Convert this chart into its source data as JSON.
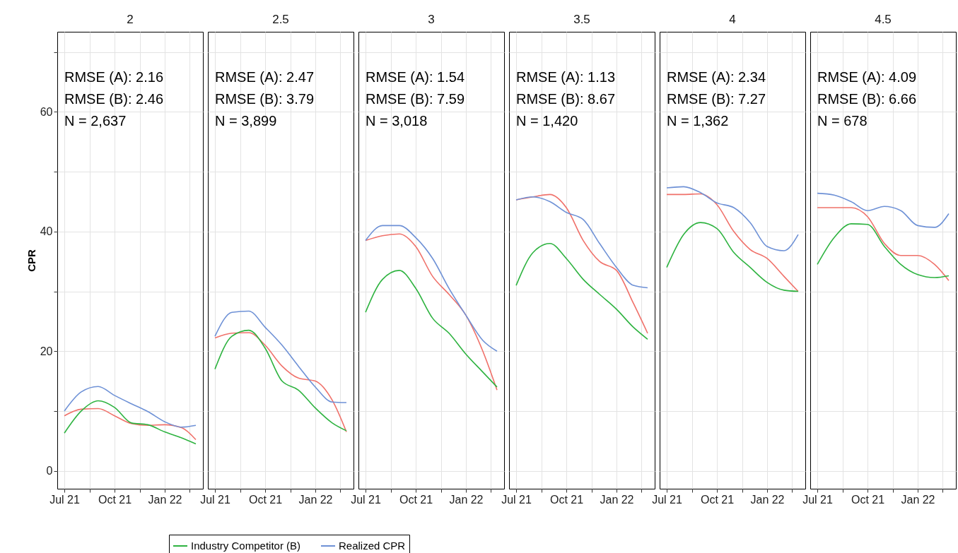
{
  "chart_data": [
    {
      "type": "line",
      "title": "2",
      "ylabel": "CPR",
      "annotations": [
        "RMSE (A): 2.16",
        "RMSE (B): 2.46",
        "N = 2,637"
      ],
      "x": [
        "2021-07-01",
        "2021-08-01",
        "2021-09-01",
        "2021-10-01",
        "2021-11-01",
        "2021-12-01",
        "2022-01-01",
        "2022-02-01",
        "2022-02-27"
      ],
      "xlim": [
        "2021-06-18",
        "2022-03-12"
      ],
      "xticks": [
        {
          "value": "2021-07-01",
          "label": "Jul 21"
        },
        {
          "value": "2021-08-16",
          "label": null
        },
        {
          "value": "2021-10-01",
          "label": "Oct 21"
        },
        {
          "value": "2021-11-16",
          "label": null
        },
        {
          "value": "2022-01-01",
          "label": "Jan 22"
        },
        {
          "value": "2022-02-15",
          "label": null
        }
      ],
      "ylim": [
        -3,
        73.4
      ],
      "yticks": [
        0,
        {
          "value": 10,
          "label": null
        },
        20,
        {
          "value": 30,
          "label": null
        },
        40,
        {
          "value": 50,
          "label": null
        },
        60,
        {
          "value": 70,
          "label": null
        }
      ],
      "grid": true,
      "legend": "bottom",
      "series": [
        {
          "color": "#f0716a",
          "values": [
            9.2,
            10.3,
            10.4,
            9.2,
            7.9,
            7.6,
            7.7,
            7.2,
            5.2
          ]
        },
        {
          "name": "Industry Competitor (B)",
          "color": "#2eb340",
          "values": [
            6.3,
            10,
            11.7,
            10.6,
            8,
            7.7,
            6.5,
            5.5,
            4.5
          ]
        },
        {
          "name": "Realized CPR",
          "color": "#6e91d6",
          "values": [
            10,
            13.2,
            14.1,
            12.6,
            11.2,
            9.9,
            8.2,
            7.3,
            7.6
          ]
        }
      ]
    },
    {
      "type": "line",
      "title": "2.5",
      "annotations": [
        "RMSE (A): 2.47",
        "RMSE (B): 3.79",
        "N = 3,899"
      ],
      "x": [
        "2021-07-01",
        "2021-08-01",
        "2021-09-01",
        "2021-10-01",
        "2021-11-01",
        "2021-12-01",
        "2022-01-01",
        "2022-02-01",
        "2022-02-27"
      ],
      "xlim": [
        "2021-06-18",
        "2022-03-12"
      ],
      "xticks": [
        {
          "value": "2021-07-01",
          "label": "Jul 21"
        },
        {
          "value": "2021-08-16",
          "label": null
        },
        {
          "value": "2021-10-01",
          "label": "Oct 21"
        },
        {
          "value": "2021-11-16",
          "label": null
        },
        {
          "value": "2022-01-01",
          "label": "Jan 22"
        },
        {
          "value": "2022-02-15",
          "label": null
        }
      ],
      "ylim": [
        -3,
        73.4
      ],
      "yticks": [
        0,
        {
          "value": 10,
          "label": null
        },
        20,
        {
          "value": 30,
          "label": null
        },
        40,
        {
          "value": 50,
          "label": null
        },
        60,
        {
          "value": 70,
          "label": null
        }
      ],
      "grid": true,
      "tick_labels": "x",
      "series": [
        {
          "color": "#f0716a",
          "values": [
            22.2,
            23,
            23.1,
            21,
            17.5,
            15.5,
            15,
            11.8,
            6.5
          ]
        },
        {
          "color": "#2eb340",
          "values": [
            17,
            22.5,
            23.5,
            20.5,
            15,
            13.5,
            10.5,
            8,
            6.7
          ]
        },
        {
          "color": "#6e91d6",
          "values": [
            22.5,
            26.5,
            26.7,
            24,
            21,
            17.5,
            14,
            11.5,
            11.4
          ]
        }
      ]
    },
    {
      "type": "line",
      "title": "3",
      "annotations": [
        "RMSE (A): 1.54",
        "RMSE (B): 7.59",
        "N = 3,018"
      ],
      "x": [
        "2021-07-01",
        "2021-08-01",
        "2021-09-01",
        "2021-10-01",
        "2021-11-01",
        "2021-12-01",
        "2022-01-01",
        "2022-02-01",
        "2022-02-27"
      ],
      "xlim": [
        "2021-06-18",
        "2022-03-12"
      ],
      "xticks": [
        {
          "value": "2021-07-01",
          "label": "Jul 21"
        },
        {
          "value": "2021-08-16",
          "label": null
        },
        {
          "value": "2021-10-01",
          "label": "Oct 21"
        },
        {
          "value": "2021-11-16",
          "label": null
        },
        {
          "value": "2022-01-01",
          "label": "Jan 22"
        },
        {
          "value": "2022-02-15",
          "label": null
        }
      ],
      "ylim": [
        -3,
        73.4
      ],
      "yticks": [
        0,
        {
          "value": 10,
          "label": null
        },
        20,
        {
          "value": 30,
          "label": null
        },
        40,
        {
          "value": 50,
          "label": null
        },
        60,
        {
          "value": 70,
          "label": null
        }
      ],
      "grid": true,
      "tick_labels": "x",
      "series": [
        {
          "color": "#f0716a",
          "values": [
            38.5,
            39.3,
            39.6,
            37.5,
            32.5,
            29.5,
            26,
            20,
            13.5
          ]
        },
        {
          "color": "#2eb340",
          "values": [
            26.5,
            32,
            33.5,
            30.5,
            25.5,
            23,
            19.5,
            16.5,
            14
          ]
        },
        {
          "color": "#6e91d6",
          "values": [
            38.5,
            41,
            41,
            39,
            35.5,
            30.5,
            26,
            21.8,
            20
          ]
        }
      ]
    },
    {
      "type": "line",
      "title": "3.5",
      "annotations": [
        "RMSE (A): 1.13",
        "RMSE (B): 8.67",
        "N = 1,420"
      ],
      "x": [
        "2021-07-01",
        "2021-08-01",
        "2021-09-01",
        "2021-10-01",
        "2021-11-01",
        "2021-12-01",
        "2022-01-01",
        "2022-02-01",
        "2022-02-27"
      ],
      "xlim": [
        "2021-06-18",
        "2022-03-12"
      ],
      "xticks": [
        {
          "value": "2021-07-01",
          "label": "Jul 21"
        },
        {
          "value": "2021-08-16",
          "label": null
        },
        {
          "value": "2021-10-01",
          "label": "Oct 21"
        },
        {
          "value": "2021-11-16",
          "label": null
        },
        {
          "value": "2022-01-01",
          "label": "Jan 22"
        },
        {
          "value": "2022-02-15",
          "label": null
        }
      ],
      "ylim": [
        -3,
        73.4
      ],
      "yticks": [
        0,
        {
          "value": 10,
          "label": null
        },
        20,
        {
          "value": 30,
          "label": null
        },
        40,
        {
          "value": 50,
          "label": null
        },
        60,
        {
          "value": 70,
          "label": null
        }
      ],
      "grid": true,
      "tick_labels": "x",
      "series": [
        {
          "color": "#f0716a",
          "values": [
            45.3,
            45.8,
            46.2,
            44,
            38.5,
            35,
            33.5,
            28,
            23
          ]
        },
        {
          "color": "#2eb340",
          "values": [
            31,
            36.5,
            38,
            35.5,
            32,
            29.5,
            27,
            24,
            22
          ]
        },
        {
          "color": "#6e91d6",
          "values": [
            45.3,
            45.8,
            45,
            43.2,
            42,
            38,
            34,
            31,
            30.6
          ]
        }
      ]
    },
    {
      "type": "line",
      "title": "4",
      "annotations": [
        "RMSE (A): 2.34",
        "RMSE (B): 7.27",
        "N = 1,362"
      ],
      "x": [
        "2021-07-01",
        "2021-08-01",
        "2021-09-01",
        "2021-10-01",
        "2021-11-01",
        "2021-12-01",
        "2022-01-01",
        "2022-02-01",
        "2022-02-27"
      ],
      "xlim": [
        "2021-06-18",
        "2022-03-12"
      ],
      "xticks": [
        {
          "value": "2021-07-01",
          "label": "Jul 21"
        },
        {
          "value": "2021-08-16",
          "label": null
        },
        {
          "value": "2021-10-01",
          "label": "Oct 21"
        },
        {
          "value": "2021-11-16",
          "label": null
        },
        {
          "value": "2022-01-01",
          "label": "Jan 22"
        },
        {
          "value": "2022-02-15",
          "label": null
        }
      ],
      "ylim": [
        -3,
        73.4
      ],
      "yticks": [
        0,
        {
          "value": 10,
          "label": null
        },
        20,
        {
          "value": 30,
          "label": null
        },
        40,
        {
          "value": 50,
          "label": null
        },
        60,
        {
          "value": 70,
          "label": null
        }
      ],
      "grid": true,
      "tick_labels": "x",
      "series": [
        {
          "color": "#f0716a",
          "values": [
            46.2,
            46.2,
            46.3,
            44.5,
            40,
            37,
            35.5,
            32.5,
            30
          ]
        },
        {
          "color": "#2eb340",
          "values": [
            34,
            39.5,
            41.5,
            40.5,
            36.5,
            34,
            31.5,
            30.2,
            30
          ]
        },
        {
          "color": "#6e91d6",
          "values": [
            47.3,
            47.5,
            46.5,
            44.8,
            44,
            41.5,
            37.5,
            36.8,
            39.5
          ]
        }
      ]
    },
    {
      "type": "line",
      "title": "4.5",
      "annotations": [
        "RMSE (A): 4.09",
        "RMSE (B): 6.66",
        "N = 678"
      ],
      "x": [
        "2021-07-01",
        "2021-08-01",
        "2021-09-01",
        "2021-10-01",
        "2021-11-01",
        "2021-12-01",
        "2022-01-01",
        "2022-02-01",
        "2022-02-27"
      ],
      "xlim": [
        "2021-06-18",
        "2022-03-12"
      ],
      "xticks": [
        {
          "value": "2021-07-01",
          "label": "Jul 21"
        },
        {
          "value": "2021-08-16",
          "label": null
        },
        {
          "value": "2021-10-01",
          "label": "Oct 21"
        },
        {
          "value": "2021-11-16",
          "label": null
        },
        {
          "value": "2022-01-01",
          "label": "Jan 22"
        },
        {
          "value": "2022-02-15",
          "label": null
        }
      ],
      "ylim": [
        -3,
        73.4
      ],
      "yticks": [
        0,
        {
          "value": 10,
          "label": null
        },
        20,
        {
          "value": 30,
          "label": null
        },
        40,
        {
          "value": 50,
          "label": null
        },
        60,
        {
          "value": 70,
          "label": null
        }
      ],
      "grid": true,
      "tick_labels": "x",
      "series": [
        {
          "color": "#f0716a",
          "values": [
            44,
            44,
            44,
            42.5,
            38,
            36,
            36,
            34.5,
            31.8
          ]
        },
        {
          "color": "#2eb340",
          "values": [
            34.5,
            39,
            41.3,
            41.2,
            37.5,
            34.5,
            32.8,
            32.3,
            32.6
          ]
        },
        {
          "color": "#6e91d6",
          "values": [
            46.4,
            46.1,
            45,
            43.5,
            44.2,
            43.5,
            41,
            40.7,
            43
          ]
        }
      ]
    }
  ]
}
